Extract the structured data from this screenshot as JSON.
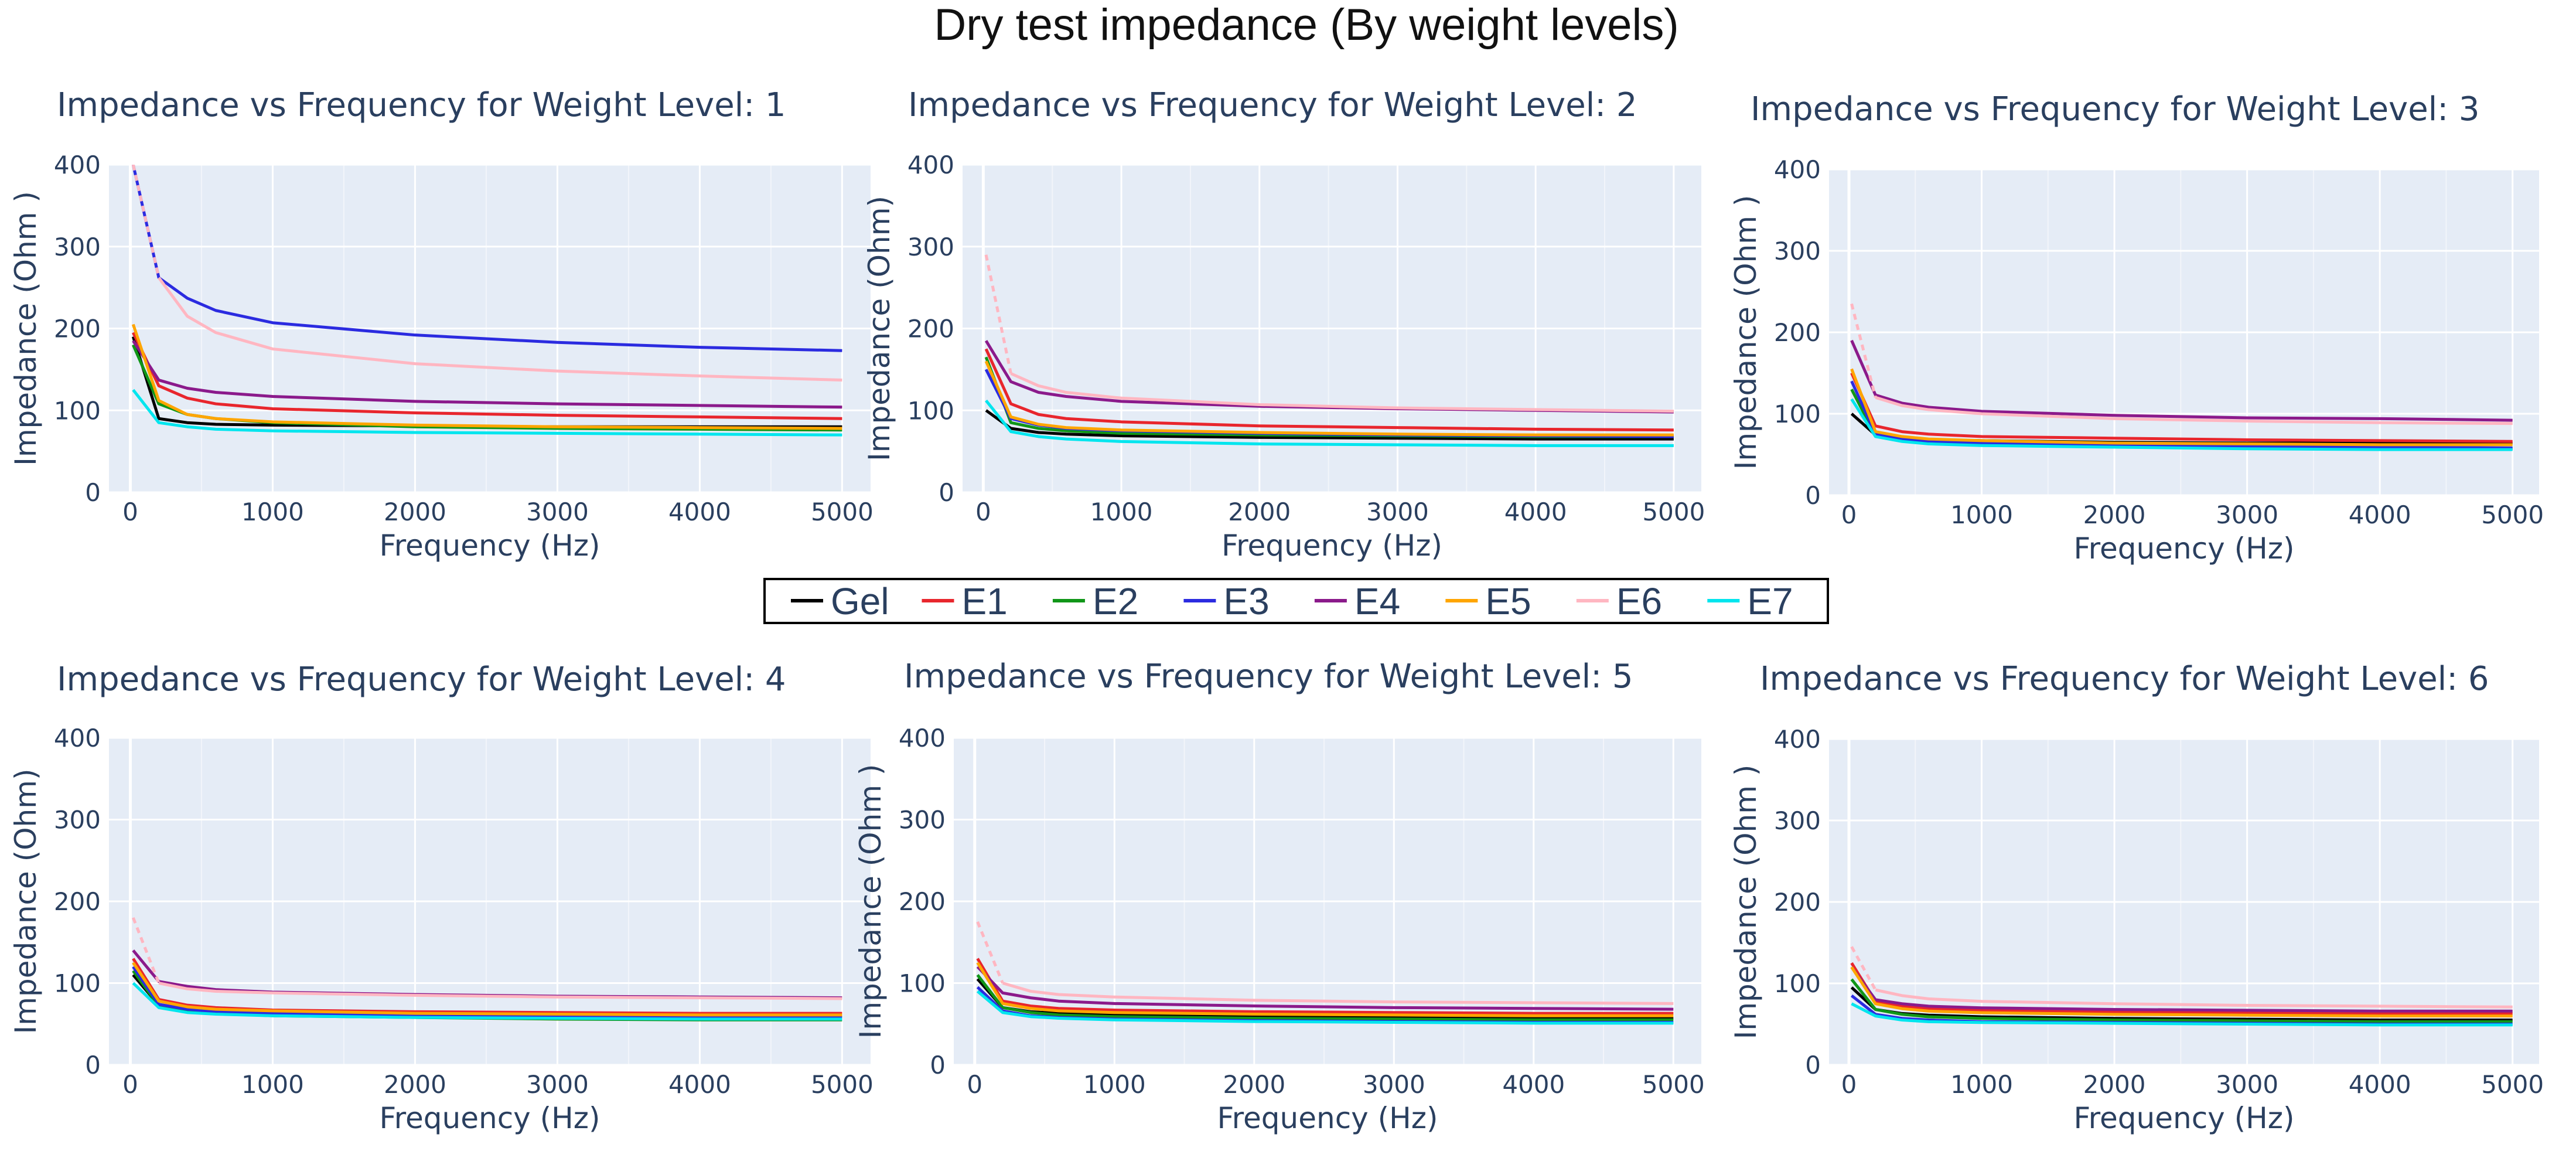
{
  "figure_title": "Dry test impedance (By weight levels)",
  "legend": [
    {
      "name": "Gel",
      "color": "#000000"
    },
    {
      "name": "E1",
      "color": "#e8262d"
    },
    {
      "name": "E2",
      "color": "#109618"
    },
    {
      "name": "E3",
      "color": "#2b2be0"
    },
    {
      "name": "E4",
      "color": "#8b1a8b"
    },
    {
      "name": "E5",
      "color": "#ffa500"
    },
    {
      "name": "E6",
      "color": "#ffb6c1"
    },
    {
      "name": "E7",
      "color": "#00e5ee"
    }
  ],
  "chart_data": [
    {
      "type": "line",
      "title": "Impedance vs Frequency for Weight Level: 1",
      "xlabel": "Frequency (Hz)",
      "ylabel": "Impedance (Ohm )",
      "xlim": [
        -150,
        5200
      ],
      "ylim": [
        0,
        400
      ],
      "xticks": [
        0,
        1000,
        2000,
        3000,
        4000,
        5000
      ],
      "yticks": [
        0,
        100,
        200,
        300,
        400
      ],
      "x": [
        20,
        200,
        400,
        600,
        1000,
        2000,
        3000,
        4000,
        5000
      ],
      "series": [
        {
          "name": "Gel",
          "values": [
            190,
            90,
            85,
            83,
            82,
            81,
            80,
            80,
            80
          ]
        },
        {
          "name": "E1",
          "values": [
            195,
            130,
            115,
            108,
            102,
            97,
            94,
            92,
            90
          ]
        },
        {
          "name": "E2",
          "values": [
            180,
            108,
            95,
            90,
            85,
            80,
            78,
            77,
            76
          ]
        },
        {
          "name": "E3",
          "values": [
            400,
            262,
            237,
            222,
            207,
            192,
            183,
            177,
            173
          ]
        },
        {
          "name": "E4",
          "values": [
            185,
            137,
            127,
            122,
            117,
            111,
            108,
            106,
            104
          ]
        },
        {
          "name": "E5",
          "values": [
            205,
            112,
            95,
            90,
            86,
            82,
            80,
            79,
            78
          ]
        },
        {
          "name": "E6",
          "values": [
            400,
            262,
            215,
            195,
            175,
            157,
            148,
            142,
            137
          ]
        },
        {
          "name": "E7",
          "values": [
            125,
            85,
            80,
            77,
            75,
            73,
            72,
            71,
            70
          ]
        }
      ]
    },
    {
      "type": "line",
      "title": "Impedance vs Frequency for Weight Level: 2",
      "xlabel": "Frequency (Hz)",
      "ylabel": "Impedance (Ohm)",
      "xlim": [
        -150,
        5200
      ],
      "ylim": [
        0,
        400
      ],
      "xticks": [
        0,
        1000,
        2000,
        3000,
        4000,
        5000
      ],
      "yticks": [
        0,
        100,
        200,
        300,
        400
      ],
      "x": [
        20,
        200,
        400,
        600,
        1000,
        2000,
        3000,
        4000,
        5000
      ],
      "series": [
        {
          "name": "Gel",
          "values": [
            100,
            78,
            73,
            71,
            69,
            67,
            66,
            65,
            65
          ]
        },
        {
          "name": "E1",
          "values": [
            175,
            108,
            95,
            90,
            86,
            81,
            79,
            77,
            76
          ]
        },
        {
          "name": "E2",
          "values": [
            165,
            85,
            78,
            75,
            72,
            70,
            69,
            68,
            68
          ]
        },
        {
          "name": "E3",
          "values": [
            150,
            90,
            82,
            78,
            75,
            72,
            70,
            69,
            68
          ]
        },
        {
          "name": "E4",
          "values": [
            185,
            135,
            122,
            117,
            111,
            105,
            102,
            100,
            98
          ]
        },
        {
          "name": "E5",
          "values": [
            160,
            92,
            83,
            79,
            76,
            73,
            71,
            70,
            70
          ]
        },
        {
          "name": "E6",
          "values": [
            290,
            145,
            130,
            122,
            115,
            107,
            103,
            101,
            99
          ]
        },
        {
          "name": "E7",
          "values": [
            112,
            74,
            68,
            65,
            62,
            59,
            58,
            57,
            57
          ]
        }
      ]
    },
    {
      "type": "line",
      "title": "Impedance vs Frequency for Weight Level: 3",
      "xlabel": "Frequency (Hz)",
      "ylabel": "Impedance (Ohm )",
      "xlim": [
        -150,
        5200
      ],
      "ylim": [
        0,
        400
      ],
      "xticks": [
        0,
        1000,
        2000,
        3000,
        4000,
        5000
      ],
      "yticks": [
        0,
        100,
        200,
        300,
        400
      ],
      "x": [
        20,
        200,
        400,
        600,
        1000,
        2000,
        3000,
        4000,
        5000
      ],
      "series": [
        {
          "name": "Gel",
          "values": [
            100,
            74,
            70,
            68,
            67,
            65,
            64,
            64,
            64
          ]
        },
        {
          "name": "E1",
          "values": [
            150,
            85,
            78,
            75,
            72,
            70,
            68,
            67,
            66
          ]
        },
        {
          "name": "E2",
          "values": [
            130,
            73,
            67,
            64,
            62,
            60,
            58,
            57,
            57
          ]
        },
        {
          "name": "E3",
          "values": [
            140,
            75,
            69,
            66,
            64,
            61,
            60,
            59,
            58
          ]
        },
        {
          "name": "E4",
          "values": [
            190,
            123,
            113,
            108,
            103,
            98,
            95,
            94,
            92
          ]
        },
        {
          "name": "E5",
          "values": [
            155,
            78,
            72,
            69,
            67,
            64,
            63,
            62,
            62
          ]
        },
        {
          "name": "E6",
          "values": [
            235,
            120,
            110,
            105,
            100,
            94,
            91,
            89,
            88
          ]
        },
        {
          "name": "E7",
          "values": [
            118,
            72,
            66,
            63,
            61,
            59,
            57,
            56,
            56
          ]
        }
      ]
    },
    {
      "type": "line",
      "title": "Impedance vs Frequency for Weight Level: 4",
      "xlabel": "Frequency (Hz)",
      "ylabel": "Impedance (Ohm)",
      "xlim": [
        -150,
        5200
      ],
      "ylim": [
        0,
        400
      ],
      "xticks": [
        0,
        1000,
        2000,
        3000,
        4000,
        5000
      ],
      "yticks": [
        0,
        100,
        200,
        300,
        400
      ],
      "x": [
        20,
        200,
        400,
        600,
        1000,
        2000,
        3000,
        4000,
        5000
      ],
      "series": [
        {
          "name": "Gel",
          "values": [
            110,
            73,
            68,
            66,
            64,
            62,
            61,
            60,
            60
          ]
        },
        {
          "name": "E1",
          "values": [
            130,
            80,
            73,
            70,
            67,
            65,
            64,
            63,
            63
          ]
        },
        {
          "name": "E2",
          "values": [
            115,
            72,
            66,
            63,
            60,
            58,
            56,
            55,
            55
          ]
        },
        {
          "name": "E3",
          "values": [
            120,
            74,
            68,
            65,
            63,
            60,
            59,
            58,
            58
          ]
        },
        {
          "name": "E4",
          "values": [
            140,
            102,
            96,
            92,
            89,
            86,
            84,
            83,
            82
          ]
        },
        {
          "name": "E5",
          "values": [
            125,
            78,
            71,
            68,
            66,
            63,
            62,
            61,
            61
          ]
        },
        {
          "name": "E6",
          "values": [
            180,
            100,
            93,
            90,
            88,
            85,
            83,
            82,
            81
          ]
        },
        {
          "name": "E7",
          "values": [
            100,
            70,
            64,
            62,
            60,
            58,
            57,
            56,
            56
          ]
        }
      ]
    },
    {
      "type": "line",
      "title": "Impedance vs Frequency for Weight Level: 5",
      "xlabel": "Frequency (Hz)",
      "ylabel": "Impedance (Ohm )",
      "xlim": [
        -150,
        5200
      ],
      "ylim": [
        0,
        400
      ],
      "xticks": [
        0,
        1000,
        2000,
        3000,
        4000,
        5000
      ],
      "yticks": [
        0,
        100,
        200,
        300,
        400
      ],
      "x": [
        20,
        200,
        400,
        600,
        1000,
        2000,
        3000,
        4000,
        5000
      ],
      "series": [
        {
          "name": "Gel",
          "values": [
            105,
            70,
            65,
            63,
            61,
            59,
            58,
            57,
            57
          ]
        },
        {
          "name": "E1",
          "values": [
            130,
            78,
            72,
            69,
            67,
            65,
            64,
            63,
            63
          ]
        },
        {
          "name": "E2",
          "values": [
            110,
            70,
            64,
            61,
            59,
            57,
            56,
            55,
            55
          ]
        },
        {
          "name": "E3",
          "values": [
            95,
            66,
            60,
            58,
            56,
            54,
            53,
            52,
            52
          ]
        },
        {
          "name": "E4",
          "values": [
            120,
            88,
            82,
            78,
            75,
            72,
            70,
            69,
            68
          ]
        },
        {
          "name": "E5",
          "values": [
            125,
            75,
            69,
            66,
            64,
            62,
            61,
            60,
            60
          ]
        },
        {
          "name": "E6",
          "values": [
            175,
            100,
            90,
            86,
            83,
            79,
            77,
            76,
            75
          ]
        },
        {
          "name": "E7",
          "values": [
            90,
            64,
            59,
            57,
            55,
            53,
            52,
            51,
            51
          ]
        }
      ]
    },
    {
      "type": "line",
      "title": "Impedance vs Frequency for Weight Level: 6",
      "xlabel": "Frequency (Hz)",
      "ylabel": "Impedance (Ohm )",
      "xlim": [
        -150,
        5200
      ],
      "ylim": [
        0,
        400
      ],
      "xticks": [
        0,
        1000,
        2000,
        3000,
        4000,
        5000
      ],
      "yticks": [
        0,
        100,
        200,
        300,
        400
      ],
      "x": [
        20,
        200,
        400,
        600,
        1000,
        2000,
        3000,
        4000,
        5000
      ],
      "series": [
        {
          "name": "Gel",
          "values": [
            95,
            68,
            63,
            61,
            59,
            57,
            56,
            55,
            55
          ]
        },
        {
          "name": "E1",
          "values": [
            125,
            78,
            72,
            69,
            67,
            65,
            64,
            63,
            63
          ]
        },
        {
          "name": "E2",
          "values": [
            105,
            68,
            62,
            59,
            57,
            55,
            54,
            53,
            53
          ]
        },
        {
          "name": "E3",
          "values": [
            85,
            62,
            57,
            55,
            53,
            52,
            51,
            50,
            50
          ]
        },
        {
          "name": "E4",
          "values": [
            120,
            80,
            75,
            72,
            70,
            68,
            67,
            66,
            66
          ]
        },
        {
          "name": "E5",
          "values": [
            120,
            75,
            69,
            66,
            64,
            62,
            61,
            60,
            60
          ]
        },
        {
          "name": "E6",
          "values": [
            145,
            92,
            85,
            81,
            78,
            75,
            73,
            72,
            71
          ]
        },
        {
          "name": "E7",
          "values": [
            75,
            60,
            55,
            53,
            52,
            51,
            50,
            49,
            49
          ]
        }
      ]
    }
  ]
}
